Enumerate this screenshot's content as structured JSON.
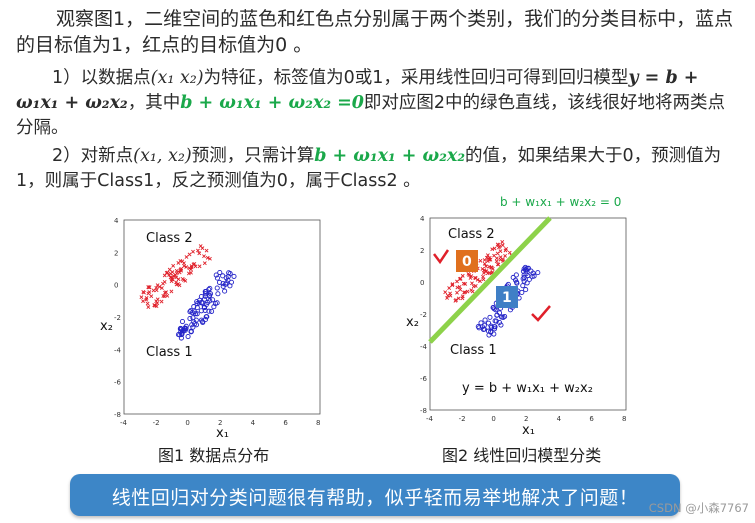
{
  "intro": {
    "line1": "观察图1，二维空间的蓝色和红色点分别属于两个类别，我们的分类目标中，蓝点的目标值为1，红点的目标值为0 。"
  },
  "step1": {
    "prefix": "1）以数据点",
    "feature": "(x₁ x₂)",
    "mid1": "为特征，标签值为0或1，采用线性回归可得到回归模型",
    "model": "y = b + ω₁x₁ + ω₂x₂",
    "mid2": "，其中",
    "boundary": "b + ω₁x₁ + ω₂x₂ =0",
    "suffix": "即对应图2中的绿色直线，该线很好地将两类点分隔。"
  },
  "step2": {
    "prefix": "2）对新点",
    "point": "(x₁, x₂)",
    "mid1": "预测，只需计算",
    "expr": "b + ω₁x₁ + ω₂x₂",
    "suffix": "的值，如果结果大于0，预测值为1，则属于Class1，反之预测值为0，属于Class2 。"
  },
  "fig1": {
    "class2_label": "Class 2",
    "class1_label": "Class 1",
    "xlabel": "x₁",
    "ylabel": "x₂",
    "caption": "图1  数据点分布",
    "xticks": [
      "-4",
      "-2",
      "0",
      "2",
      "4",
      "6",
      "8"
    ],
    "yticks": [
      "4",
      "2",
      "0",
      "-2",
      "-4",
      "-6",
      "-8"
    ]
  },
  "fig2": {
    "line_label": "b + w₁x₁ + w₂x₂ = 0",
    "class2_label": "Class 2",
    "class1_label": "Class 1",
    "box0": "0",
    "box1": "1",
    "equation": "y = b + w₁x₁ + w₂x₂",
    "xlabel": "x₁",
    "ylabel": "x₂",
    "caption": "图2  线性回归模型分类",
    "xticks": [
      "-4",
      "-2",
      "0",
      "2",
      "4",
      "6",
      "8"
    ],
    "yticks": [
      "4",
      "2",
      "0",
      "-2",
      "-4",
      "-6",
      "-8"
    ]
  },
  "banner": {
    "text": "线性回归对分类问题很有帮助，似乎轻而易举地解决了问题！"
  },
  "watermark": "CSDN @小森7767",
  "colors": {
    "red_points": "#e0202a",
    "blue_points": "#2424c8",
    "green_line": "#8dd24a",
    "box0": "#e0701e",
    "box1": "#3f7fc6",
    "banner": "#3d86c7"
  }
}
